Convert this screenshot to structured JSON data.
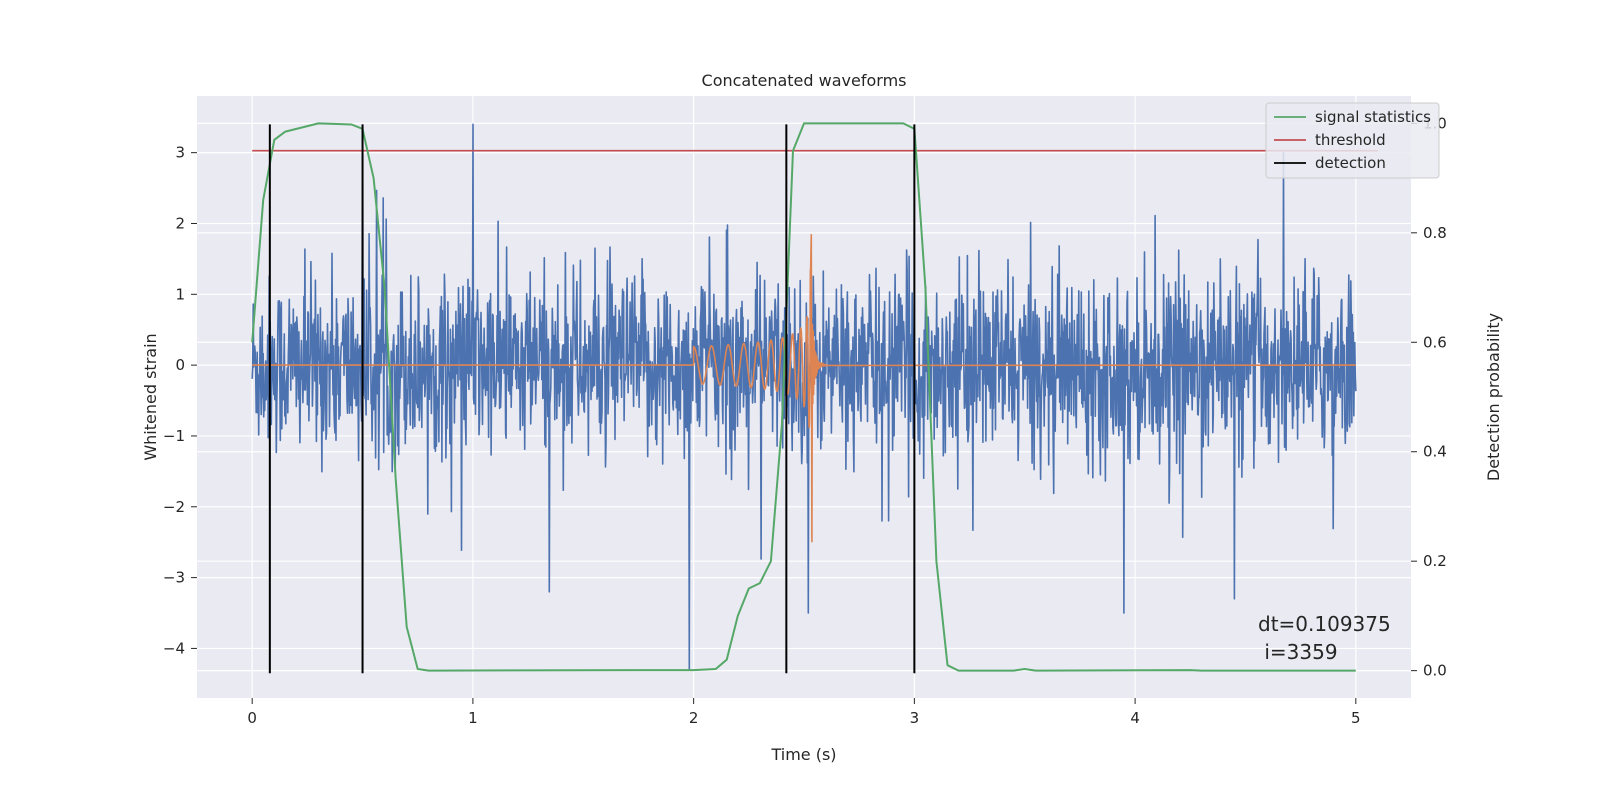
{
  "chart_data": {
    "type": "line",
    "title": "Concatenated waveforms",
    "xlabel": "Time (s)",
    "ylabel": "Whitened strain",
    "y2label": "Detection probability",
    "xlim": [
      -0.25,
      5.25
    ],
    "ylim": [
      -4.7,
      3.8
    ],
    "y2lim": [
      -0.05,
      1.05
    ],
    "x_ticks": [
      0,
      1,
      2,
      3,
      4,
      5
    ],
    "y_ticks": [
      -4,
      -3,
      -2,
      -1,
      0,
      1,
      2,
      3
    ],
    "y2_ticks": [
      0.0,
      0.2,
      0.4,
      0.6,
      0.8,
      1.0
    ],
    "x_tick_labels": [
      "0",
      "1",
      "2",
      "3",
      "4",
      "5"
    ],
    "y_tick_labels": [
      "−4",
      "−3",
      "−2",
      "−1",
      "0",
      "1",
      "2",
      "3"
    ],
    "y2_tick_labels": [
      "0.0",
      "0.2",
      "0.4",
      "0.6",
      "0.8",
      "1.0"
    ],
    "grid": true,
    "legend_position": "top-right",
    "series": [
      {
        "id": "strain",
        "color": "#4c72b0",
        "description": "whitened strain noise, approx. Gaussian, peaks up to ~3.4 and down to ~-4.3",
        "x_range": [
          0,
          5
        ],
        "typical_amplitude": 1.0,
        "extremes": [
          [
            0.5,
            3.35
          ],
          [
            1.0,
            3.4
          ],
          [
            1.98,
            -4.3
          ],
          [
            2.52,
            -3.5
          ],
          [
            3.95,
            -3.5
          ],
          [
            4.45,
            -3.3
          ]
        ]
      },
      {
        "id": "template",
        "color": "#dd8452",
        "description": "chirp waveform between t=2.0 and t=2.53, amplitude growing to ~1.8",
        "x_range": [
          0,
          5
        ],
        "chirp_start": 2.0,
        "chirp_merger": 2.53,
        "peak_positive": 1.85,
        "peak_negative": -2.5
      },
      {
        "name": "signal statistics",
        "axis": "right",
        "color": "#55a868",
        "points": [
          [
            0,
            0.6
          ],
          [
            0.05,
            0.86
          ],
          [
            0.1,
            0.97
          ],
          [
            0.15,
            0.985
          ],
          [
            0.25,
            0.995
          ],
          [
            0.3,
            1.0
          ],
          [
            0.45,
            0.998
          ],
          [
            0.5,
            0.99
          ],
          [
            0.55,
            0.9
          ],
          [
            0.6,
            0.7
          ],
          [
            0.65,
            0.35
          ],
          [
            0.7,
            0.08
          ],
          [
            0.75,
            0.003
          ],
          [
            0.8,
            0.0
          ],
          [
            1.9,
            0.001
          ],
          [
            2.0,
            0.001
          ],
          [
            2.1,
            0.003
          ],
          [
            2.15,
            0.02
          ],
          [
            2.2,
            0.1
          ],
          [
            2.25,
            0.15
          ],
          [
            2.3,
            0.16
          ],
          [
            2.35,
            0.2
          ],
          [
            2.4,
            0.45
          ],
          [
            2.45,
            0.95
          ],
          [
            2.5,
            1.0
          ],
          [
            2.95,
            1.0
          ],
          [
            3.0,
            0.99
          ],
          [
            3.05,
            0.7
          ],
          [
            3.1,
            0.2
          ],
          [
            3.15,
            0.01
          ],
          [
            3.2,
            0.0
          ],
          [
            3.45,
            0.0
          ],
          [
            3.5,
            0.003
          ],
          [
            3.55,
            0.0
          ],
          [
            4.25,
            0.001
          ],
          [
            4.3,
            0.0
          ],
          [
            5.0,
            0.0
          ]
        ]
      },
      {
        "name": "threshold",
        "axis": "right",
        "color": "#c44e52",
        "x_range": [
          0,
          5.1
        ],
        "value": 0.95
      },
      {
        "name": "detection",
        "axis": "left",
        "color": "#000000",
        "x": [
          0.08,
          0.5,
          2.42,
          3.0
        ],
        "ymin": -4.35,
        "ymax": 3.4
      }
    ],
    "legend": [
      "signal statistics",
      "threshold",
      "detection"
    ],
    "annotation": {
      "line1": "dt=0.109375",
      "line2": " i=3359"
    }
  }
}
